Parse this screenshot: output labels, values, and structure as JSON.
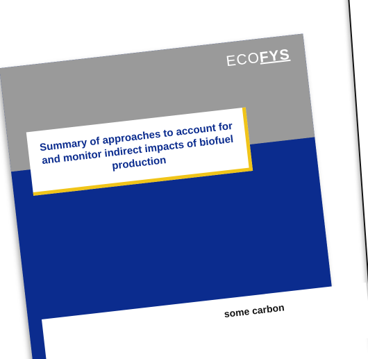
{
  "cover": {
    "logo_prefix": "ECO",
    "logo_strong": "FYS",
    "title": "Summary of approaches to account for and monitor indirect impacts of biofuel production"
  },
  "footer": {
    "partial_text": "some carbon"
  },
  "colors": {
    "cover_blue": "#0b2c8e",
    "cover_grey": "#9a9a9a",
    "accent_yellow": "#f0c419"
  }
}
